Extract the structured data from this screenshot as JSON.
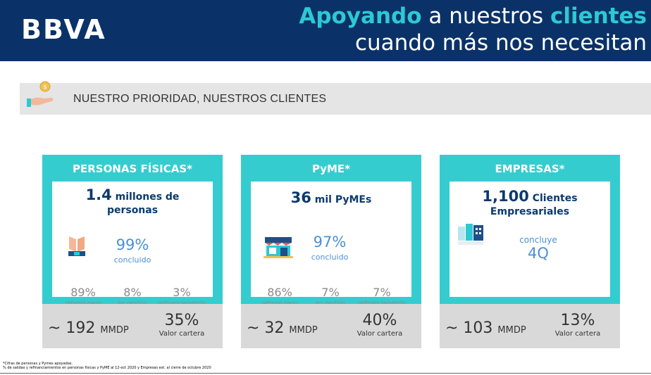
{
  "header": {
    "logo": "BBVA",
    "line1_hl1": "Apoyando",
    "line1_mid": " a nuestros ",
    "line1_hl2": "clientes",
    "line2": "cuando más nos necesitan"
  },
  "banner": {
    "icon": "hand-coin-icon",
    "text": "NUESTRO PRIORIDAD, NUESTROS CLIENTES"
  },
  "cards": [
    {
      "title": "PERSONAS FÍSICAS*",
      "icon": "hands-icon",
      "big_num": "1.4",
      "big_text": " millones de",
      "big_line2": "personas",
      "pct": "99%",
      "pct_label": "concluido",
      "stats": [
        {
          "value": "89%",
          "label": "retomó pago"
        },
        {
          "value": "8%",
          "label": "en gestión"
        },
        {
          "value": "3%",
          "label": "refinanciamiento"
        }
      ],
      "amount_prefix": "~ 192",
      "amount_unit": "MMDP",
      "cartera_value": "35%",
      "cartera_label": "Valor cartera"
    },
    {
      "title": "PyME*",
      "icon": "storefront-icon",
      "big_num": "36",
      "big_text": " mil PyMEs",
      "big_line2": "",
      "pct": "97%",
      "pct_label": "concluido",
      "stats": [
        {
          "value": "86%",
          "label": "retomó pago"
        },
        {
          "value": "7%",
          "label": "en gestión"
        },
        {
          "value": "7%",
          "label": "refinanciamiento"
        }
      ],
      "amount_prefix": "~ 32",
      "amount_unit": "MMDP",
      "cartera_value": "40%",
      "cartera_label": "Valor cartera"
    },
    {
      "title": "EMPRESAS*",
      "icon": "buildings-icon",
      "big_num": "1,100",
      "big_text": " Clientes",
      "big_line2": "Empresariales",
      "pct_label": "concluye",
      "pct": "4Q",
      "amount_prefix": "~ 103",
      "amount_unit": "MMDP",
      "cartera_value": "13%",
      "cartera_label": "Valor cartera"
    }
  ],
  "footnote": {
    "line1": "*Cifras de personas y Pymes apoyadas.",
    "line2": "% de salidas y refinanciamientos en personas físicas y PyME al 12-oct 2020 y Empresas est. al cierre de octubre 2020"
  },
  "colors": {
    "header_bg": "#0b3268",
    "accent_teal": "#35cccf",
    "headline_highlight": "#2dc9d3",
    "text_blue": "#4a90d9",
    "banner_bg": "#e5e5e5",
    "bottom_bg": "#d9d9d9"
  }
}
